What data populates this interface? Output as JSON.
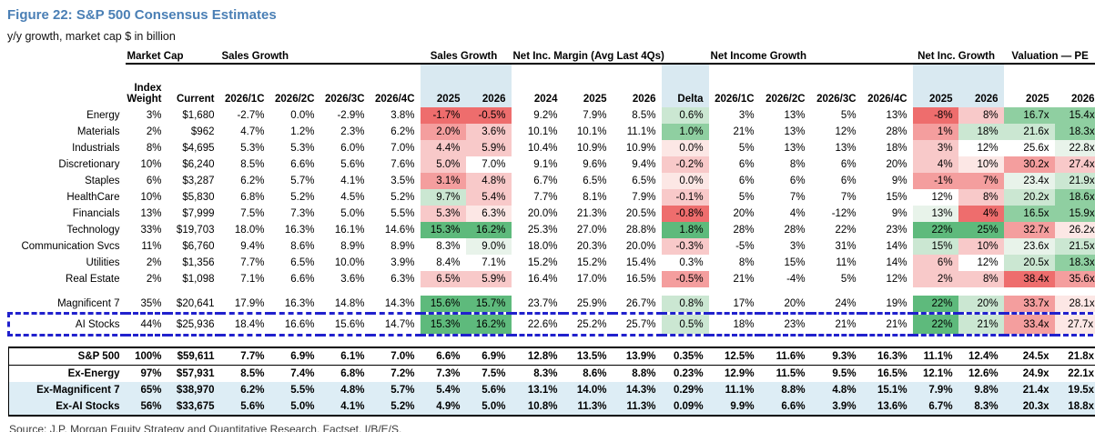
{
  "title": "Figure 22: S&P 500 Consensus Estimates",
  "subtitle": "y/y growth, market cap $ in billion",
  "source": "Source: J.P. Morgan Equity Strategy and Quantitative Research, Factset, I/B/E/S.",
  "colors": {
    "title": "#4a7fb5",
    "band": "#d9e9f1",
    "rowhl": "#ddedf5",
    "outline": "#2121cd",
    "r3": "#ee6d6d",
    "r2": "#f49e9e",
    "r1": "#f8c9c9",
    "r0": "#fce7e5",
    "g0": "#e8f3ea",
    "g1": "#cbe7d2",
    "g2": "#8fcfa1",
    "g3": "#5eba7c"
  },
  "table": {
    "column_groups": [
      {
        "label": "Market Cap",
        "span": 2,
        "align": "left"
      },
      {
        "label": "Sales Growth",
        "span": 4,
        "align": "left"
      },
      {
        "label": "Sales Growth",
        "span": 2,
        "align": "center"
      },
      {
        "label": "Net Inc. Margin (Avg Last 4Qs)",
        "span": 4,
        "align": "left"
      },
      {
        "label": "Net Income Growth",
        "span": 4,
        "align": "left"
      },
      {
        "label": "Net Inc. Growth",
        "span": 2,
        "align": "center"
      },
      {
        "label": "Valuation — PE",
        "span": 2,
        "align": "center"
      }
    ],
    "subheaders": [
      "Index|Weight",
      "Current",
      "2026/1C",
      "2026/2C",
      "2026/3C",
      "2026/4C",
      "2025",
      "2026",
      "2024",
      "2025",
      "2026",
      "Delta",
      "2026/1C",
      "2026/2C",
      "2026/3C",
      "2026/4C",
      "2025",
      "2026",
      "2025",
      "2026"
    ],
    "band_columns": [
      6,
      7,
      11,
      16,
      17
    ],
    "bold_value_columns": [
      7,
      11,
      17
    ],
    "sections": [
      {
        "name": "sectors",
        "rows": [
          {
            "label": "Energy",
            "cells": [
              "3%",
              "$1,680",
              "-2.7%",
              "0.0%",
              "-2.9%",
              "3.8%",
              "-1.7%",
              "-0.5%",
              "9.2%",
              "7.9%",
              "8.5%",
              "0.6%",
              "3%",
              "13%",
              "5%",
              "13%",
              "-8%",
              "8%",
              "16.7x",
              "15.4x"
            ],
            "fills": [
              "",
              "",
              "",
              "",
              "",
              "",
              "r3",
              "r3",
              "",
              "",
              "",
              "g1",
              "",
              "",
              "",
              "",
              "r3",
              "r1",
              "g2",
              "g2"
            ]
          },
          {
            "label": "Materials",
            "cells": [
              "2%",
              "$962",
              "4.7%",
              "1.2%",
              "2.3%",
              "6.2%",
              "2.0%",
              "3.6%",
              "10.1%",
              "10.1%",
              "11.1%",
              "1.0%",
              "21%",
              "13%",
              "12%",
              "28%",
              "1%",
              "18%",
              "21.6x",
              "18.3x"
            ],
            "fills": [
              "",
              "",
              "",
              "",
              "",
              "",
              "r2",
              "r1",
              "",
              "",
              "",
              "g2",
              "",
              "",
              "",
              "",
              "r2",
              "g1",
              "g1",
              "g2"
            ]
          },
          {
            "label": "Industrials",
            "cells": [
              "8%",
              "$4,695",
              "5.3%",
              "5.3%",
              "6.0%",
              "7.0%",
              "4.4%",
              "5.9%",
              "10.4%",
              "10.9%",
              "10.9%",
              "0.0%",
              "5%",
              "13%",
              "13%",
              "18%",
              "3%",
              "12%",
              "25.6x",
              "22.8x"
            ],
            "fills": [
              "",
              "",
              "",
              "",
              "",
              "",
              "r1",
              "r1",
              "",
              "",
              "",
              "r0",
              "",
              "",
              "",
              "",
              "r1",
              "",
              "",
              "g0"
            ]
          },
          {
            "label": "Discretionary",
            "cells": [
              "10%",
              "$6,240",
              "8.5%",
              "6.6%",
              "5.6%",
              "7.6%",
              "5.0%",
              "7.0%",
              "9.1%",
              "9.6%",
              "9.4%",
              "-0.2%",
              "6%",
              "8%",
              "6%",
              "20%",
              "4%",
              "10%",
              "30.2x",
              "27.4x"
            ],
            "fills": [
              "",
              "",
              "",
              "",
              "",
              "",
              "r1",
              "",
              "",
              "",
              "",
              "r1",
              "",
              "",
              "",
              "",
              "r1",
              "r0",
              "r2",
              "r1"
            ]
          },
          {
            "label": "Staples",
            "cells": [
              "6%",
              "$3,287",
              "6.2%",
              "5.7%",
              "4.1%",
              "3.5%",
              "3.1%",
              "4.8%",
              "6.7%",
              "6.5%",
              "6.5%",
              "0.0%",
              "6%",
              "6%",
              "6%",
              "9%",
              "-1%",
              "7%",
              "23.4x",
              "21.9x"
            ],
            "fills": [
              "",
              "",
              "",
              "",
              "",
              "",
              "r2",
              "r1",
              "",
              "",
              "",
              "r0",
              "",
              "",
              "",
              "",
              "r2",
              "r2",
              "g0",
              "g1"
            ]
          },
          {
            "label": "HealthCare",
            "cells": [
              "10%",
              "$5,830",
              "6.8%",
              "5.2%",
              "4.5%",
              "5.2%",
              "9.7%",
              "5.4%",
              "7.7%",
              "8.1%",
              "7.9%",
              "-0.1%",
              "5%",
              "7%",
              "7%",
              "15%",
              "12%",
              "8%",
              "20.2x",
              "18.6x"
            ],
            "fills": [
              "",
              "",
              "",
              "",
              "",
              "",
              "g1",
              "r1",
              "",
              "",
              "",
              "r1",
              "",
              "",
              "",
              "",
              "",
              "r1",
              "g1",
              "g2"
            ]
          },
          {
            "label": "Financials",
            "cells": [
              "13%",
              "$7,999",
              "7.5%",
              "7.3%",
              "5.0%",
              "5.5%",
              "5.3%",
              "6.3%",
              "20.0%",
              "21.3%",
              "20.5%",
              "-0.8%",
              "20%",
              "4%",
              "-12%",
              "9%",
              "13%",
              "4%",
              "16.5x",
              "15.9x"
            ],
            "fills": [
              "",
              "",
              "",
              "",
              "",
              "",
              "r1",
              "r0",
              "",
              "",
              "",
              "r3",
              "",
              "",
              "",
              "",
              "g0",
              "r3",
              "g2",
              "g2"
            ]
          },
          {
            "label": "Technology",
            "cells": [
              "33%",
              "$19,703",
              "18.0%",
              "16.3%",
              "16.1%",
              "14.6%",
              "15.3%",
              "16.2%",
              "25.3%",
              "27.0%",
              "28.8%",
              "1.8%",
              "28%",
              "28%",
              "22%",
              "23%",
              "22%",
              "25%",
              "32.7x",
              "26.2x"
            ],
            "fills": [
              "",
              "",
              "",
              "",
              "",
              "",
              "g3",
              "g3",
              "",
              "",
              "",
              "g3",
              "",
              "",
              "",
              "",
              "g3",
              "g3",
              "r2",
              "r0"
            ]
          },
          {
            "label": "Communication Svcs",
            "cells": [
              "11%",
              "$6,760",
              "9.4%",
              "8.6%",
              "8.9%",
              "8.9%",
              "8.3%",
              "9.0%",
              "18.0%",
              "20.3%",
              "20.0%",
              "-0.3%",
              "-5%",
              "3%",
              "31%",
              "14%",
              "15%",
              "10%",
              "23.6x",
              "21.5x"
            ],
            "fills": [
              "",
              "",
              "",
              "",
              "",
              "",
              "",
              "g0",
              "",
              "",
              "",
              "r1",
              "",
              "",
              "",
              "",
              "g1",
              "r1",
              "g0",
              "g1"
            ]
          },
          {
            "label": "Utilities",
            "cells": [
              "2%",
              "$1,356",
              "7.7%",
              "6.5%",
              "10.0%",
              "3.9%",
              "8.4%",
              "7.1%",
              "15.2%",
              "15.2%",
              "15.4%",
              "0.3%",
              "8%",
              "15%",
              "11%",
              "14%",
              "6%",
              "12%",
              "20.5x",
              "18.3x"
            ],
            "fills": [
              "",
              "",
              "",
              "",
              "",
              "",
              "",
              "",
              "",
              "",
              "",
              "",
              "",
              "",
              "",
              "",
              "r1",
              "",
              "g1",
              "g2"
            ]
          },
          {
            "label": "Real Estate",
            "cells": [
              "2%",
              "$1,098",
              "7.1%",
              "6.6%",
              "3.6%",
              "6.3%",
              "6.5%",
              "5.9%",
              "16.4%",
              "17.0%",
              "16.5%",
              "-0.5%",
              "21%",
              "-4%",
              "5%",
              "12%",
              "2%",
              "8%",
              "38.4x",
              "35.6x"
            ],
            "fills": [
              "",
              "",
              "",
              "",
              "",
              "",
              "r1",
              "r1",
              "",
              "",
              "",
              "r2",
              "",
              "",
              "",
              "",
              "r1",
              "r1",
              "r3",
              "r2"
            ]
          }
        ]
      },
      {
        "name": "aggregates",
        "rows": [
          {
            "label": "Magnificent 7",
            "cells": [
              "35%",
              "$20,641",
              "17.9%",
              "16.3%",
              "14.8%",
              "14.3%",
              "15.6%",
              "15.7%",
              "23.7%",
              "25.9%",
              "26.7%",
              "0.8%",
              "17%",
              "20%",
              "24%",
              "19%",
              "22%",
              "20%",
              "33.7x",
              "28.1x"
            ],
            "fills": [
              "",
              "",
              "",
              "",
              "",
              "",
              "g3",
              "g3",
              "",
              "",
              "",
              "g1",
              "",
              "",
              "",
              "",
              "g3",
              "g1",
              "r2",
              "r0"
            ]
          },
          {
            "label": "AI Stocks",
            "outlined": true,
            "cells": [
              "44%",
              "$25,936",
              "18.4%",
              "16.6%",
              "15.6%",
              "14.7%",
              "15.3%",
              "16.2%",
              "22.6%",
              "25.2%",
              "25.7%",
              "0.5%",
              "18%",
              "23%",
              "21%",
              "21%",
              "22%",
              "21%",
              "33.4x",
              "27.7x"
            ],
            "fills": [
              "",
              "",
              "",
              "",
              "",
              "",
              "g3",
              "g3",
              "",
              "",
              "",
              "g1",
              "",
              "",
              "",
              "",
              "g3",
              "g1",
              "r2",
              "r0"
            ]
          }
        ]
      },
      {
        "name": "index",
        "rows": [
          {
            "label": "S&P 500",
            "label_bold": true,
            "bold_values": true,
            "cells": [
              "100%",
              "$59,611",
              "7.7%",
              "6.9%",
              "6.1%",
              "7.0%",
              "6.6%",
              "6.9%",
              "12.8%",
              "13.5%",
              "13.9%",
              "0.35%",
              "12.5%",
              "11.6%",
              "9.3%",
              "16.3%",
              "11.1%",
              "12.4%",
              "24.5x",
              "21.8x"
            ],
            "fills": [
              "",
              "",
              "",
              "",
              "",
              "",
              "",
              "",
              "",
              "",
              "",
              "",
              "",
              "",
              "",
              "",
              "",
              "",
              "",
              ""
            ]
          },
          {
            "label": "Ex-Energy",
            "bold_values": true,
            "cells": [
              "97%",
              "$57,931",
              "8.5%",
              "7.4%",
              "6.8%",
              "7.2%",
              "7.3%",
              "7.5%",
              "8.3%",
              "8.6%",
              "8.8%",
              "0.23%",
              "12.9%",
              "11.5%",
              "9.5%",
              "16.5%",
              "12.1%",
              "12.6%",
              "24.9x",
              "22.1x"
            ],
            "fills": [
              "",
              "",
              "",
              "",
              "",
              "",
              "",
              "",
              "",
              "",
              "",
              "",
              "",
              "",
              "",
              "",
              "",
              "",
              "",
              ""
            ]
          },
          {
            "label": "Ex-Magnificent 7",
            "bold_values": true,
            "row_bg": true,
            "cells": [
              "65%",
              "$38,970",
              "6.2%",
              "5.5%",
              "4.8%",
              "5.7%",
              "5.4%",
              "5.6%",
              "13.1%",
              "14.0%",
              "14.3%",
              "0.29%",
              "11.1%",
              "8.8%",
              "4.8%",
              "15.1%",
              "7.9%",
              "9.8%",
              "21.4x",
              "19.5x"
            ],
            "fills": [
              "",
              "",
              "",
              "",
              "",
              "",
              "",
              "",
              "",
              "",
              "",
              "",
              "",
              "",
              "",
              "",
              "",
              "",
              "",
              ""
            ]
          },
          {
            "label": "Ex-AI Stocks",
            "bold_values": true,
            "row_bg": true,
            "cells": [
              "56%",
              "$33,675",
              "5.6%",
              "5.0%",
              "4.1%",
              "5.2%",
              "4.9%",
              "5.0%",
              "10.8%",
              "11.3%",
              "11.3%",
              "0.09%",
              "9.9%",
              "6.6%",
              "3.9%",
              "13.6%",
              "6.7%",
              "8.3%",
              "20.3x",
              "18.8x"
            ],
            "fills": [
              "",
              "",
              "",
              "",
              "",
              "",
              "",
              "",
              "",
              "",
              "",
              "",
              "",
              "",
              "",
              "",
              "",
              "",
              "",
              ""
            ]
          }
        ]
      }
    ]
  }
}
